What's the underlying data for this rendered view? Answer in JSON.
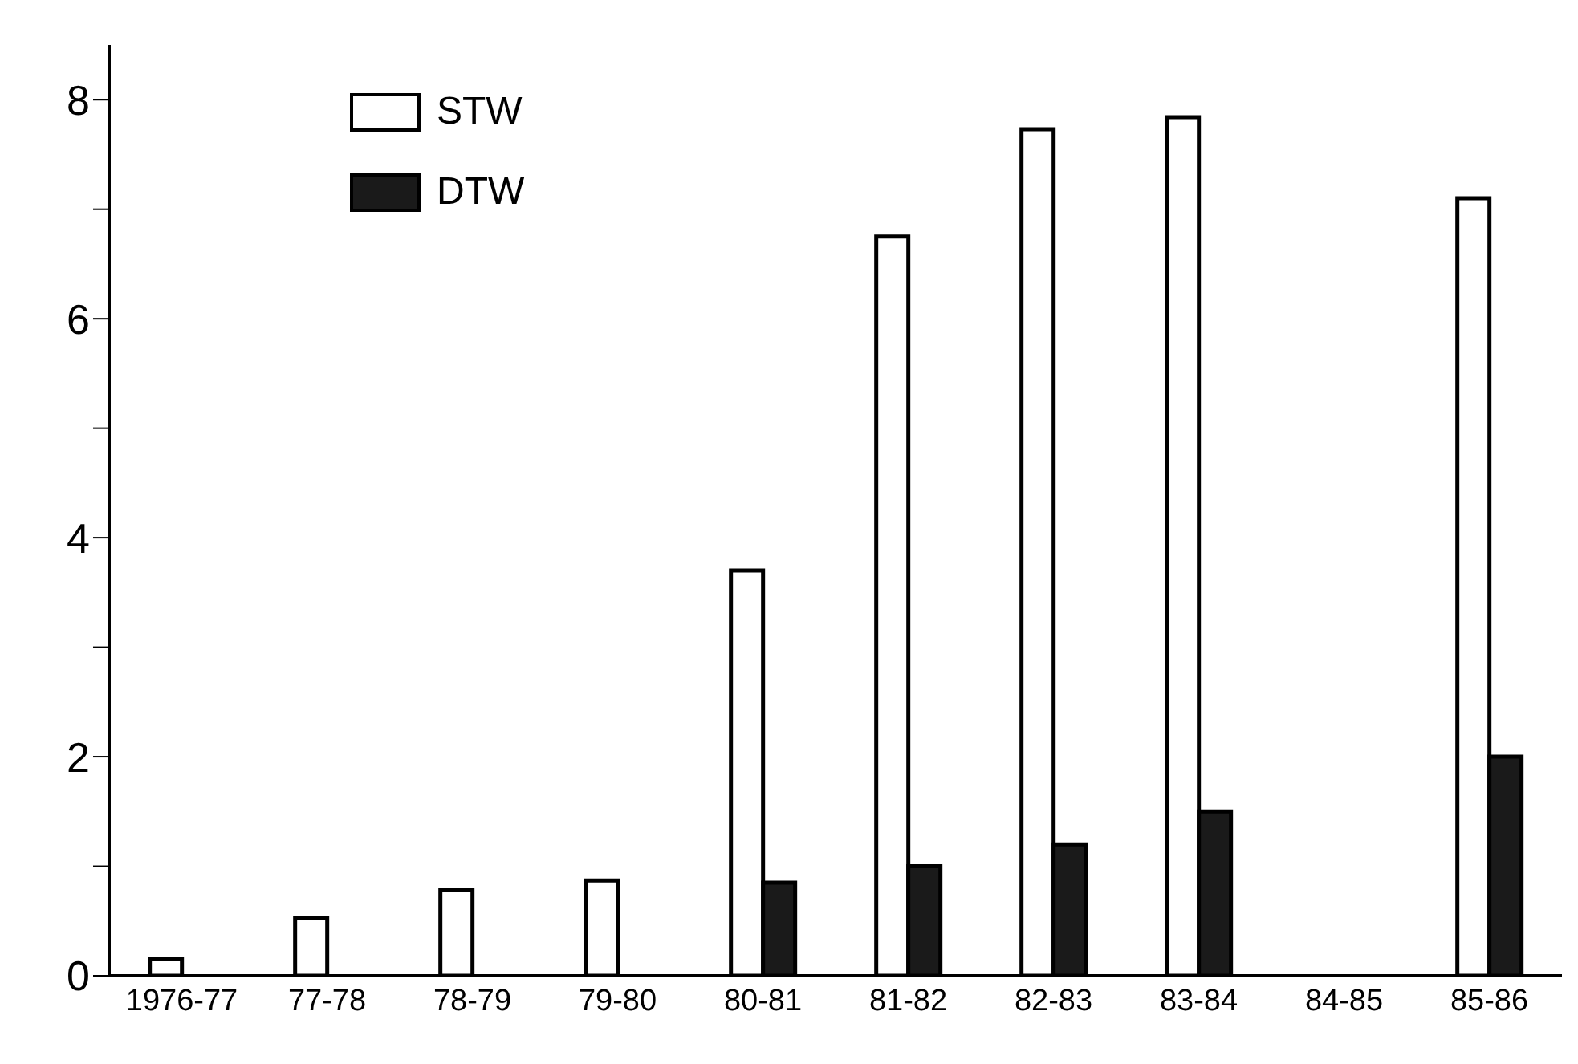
{
  "chart_data": {
    "type": "bar",
    "categories": [
      "1976-77",
      "77-78",
      "78-79",
      "79-80",
      "80-81",
      "81-82",
      "82-83",
      "83-84",
      "84-85",
      "85-86"
    ],
    "series": [
      {
        "name": "STW",
        "color": "#ffffff",
        "values": [
          0.15,
          0.53,
          0.78,
          0.87,
          3.7,
          6.75,
          7.73,
          7.84,
          null,
          7.1
        ]
      },
      {
        "name": "DTW",
        "color": "#1a1a1a",
        "values": [
          null,
          null,
          null,
          null,
          0.85,
          1.0,
          1.2,
          1.5,
          null,
          2.0
        ]
      }
    ],
    "ylim": [
      0,
      8.5
    ],
    "yticks": [
      0,
      {
        "value": 1,
        "label": null
      },
      2,
      {
        "value": 3,
        "label": null
      },
      4,
      {
        "value": 5,
        "label": null
      },
      6,
      {
        "value": 7,
        "label": null
      },
      8
    ],
    "grid": false,
    "legend": "top left"
  }
}
